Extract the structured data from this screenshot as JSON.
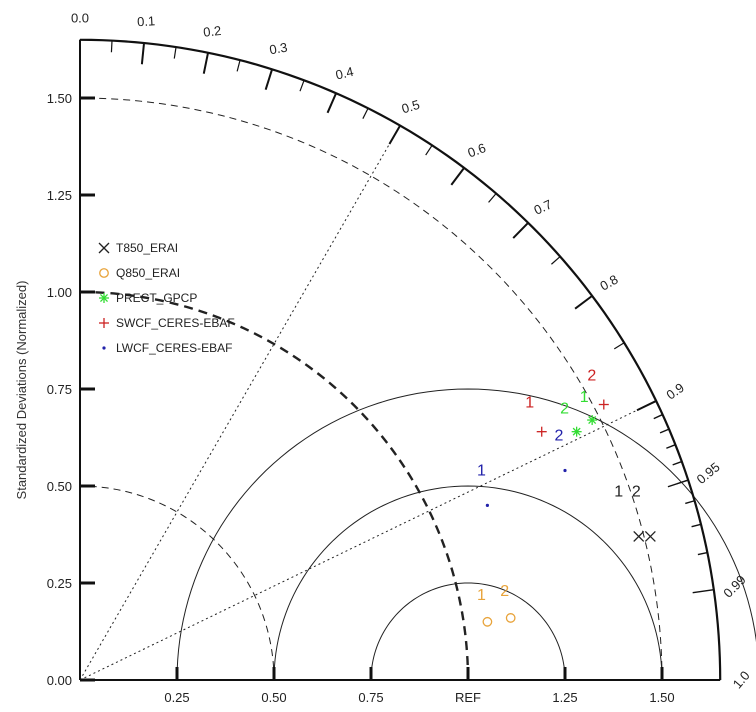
{
  "chart_data": {
    "type": "scatter",
    "subtype": "taylor-diagram",
    "ylabel": "Standardized Deviations (Normalized)",
    "x_tick_labels": [
      "0.25",
      "0.50",
      "0.75",
      "REF",
      "1.25",
      "1.50"
    ],
    "x_tick_values": [
      0.25,
      0.5,
      0.75,
      1.0,
      1.25,
      1.5
    ],
    "y_tick_labels": [
      "0.00",
      "0.25",
      "0.50",
      "0.75",
      "1.00",
      "1.25",
      "1.50"
    ],
    "y_tick_values": [
      0,
      0.25,
      0.5,
      0.75,
      1.0,
      1.25,
      1.5
    ],
    "radius_max": 1.65,
    "correlation_labels": [
      "0.0",
      "0.1",
      "0.2",
      "0.3",
      "0.4",
      "0.5",
      "0.6",
      "0.7",
      "0.8",
      "0.9",
      "0.95",
      "0.99",
      "1.0"
    ],
    "correlation_values": [
      0.0,
      0.1,
      0.2,
      0.3,
      0.4,
      0.5,
      0.6,
      0.7,
      0.8,
      0.9,
      0.95,
      0.99,
      1.0
    ],
    "reference_lines": [
      0.5,
      0.9
    ],
    "std_dev_arcs": [
      0.5,
      1.0,
      1.5
    ],
    "rmse_arcs": [
      0.25,
      0.5,
      0.75
    ],
    "series": [
      {
        "name": "T850_ERAI",
        "marker": "x",
        "color": "#222222",
        "points": [
          {
            "label": "1",
            "x": 1.44,
            "y": 0.37
          },
          {
            "label": "2",
            "x": 1.47,
            "y": 0.37
          }
        ]
      },
      {
        "name": "Q850_ERAI",
        "marker": "o",
        "color": "#e8a33a",
        "points": [
          {
            "label": "1",
            "x": 1.05,
            "y": 0.15
          },
          {
            "label": "2",
            "x": 1.11,
            "y": 0.16
          }
        ]
      },
      {
        "name": "PRECT_GPCP",
        "marker": "*",
        "color": "#33dd33",
        "points": [
          {
            "label": "1",
            "x": 1.32,
            "y": 0.67
          },
          {
            "label": "2",
            "x": 1.28,
            "y": 0.64
          }
        ]
      },
      {
        "name": "SWCF_CERES-EBAF",
        "marker": "+",
        "color": "#cc2222",
        "points": [
          {
            "label": "1",
            "x": 1.19,
            "y": 0.64
          },
          {
            "label": "2",
            "x": 1.35,
            "y": 0.71
          }
        ]
      },
      {
        "name": "LWCF_CERES-EBAF",
        "marker": ".",
        "color": "#2222aa",
        "points": [
          {
            "label": "1",
            "x": 1.05,
            "y": 0.45
          },
          {
            "label": "2",
            "x": 1.25,
            "y": 0.54
          }
        ]
      }
    ]
  }
}
